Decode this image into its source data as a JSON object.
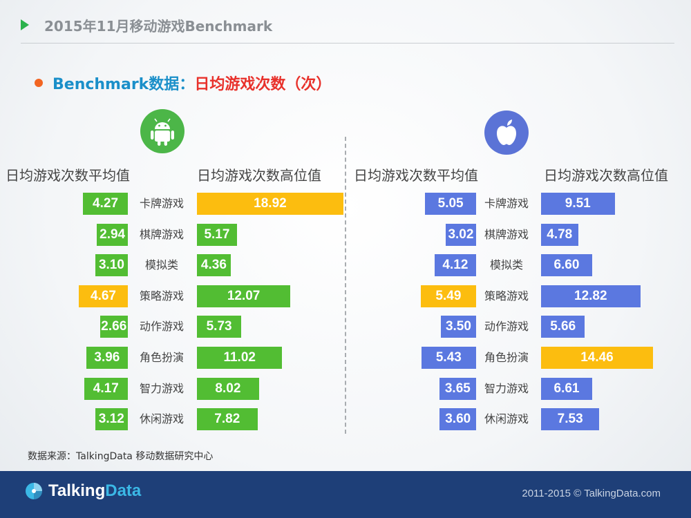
{
  "header": {
    "title": "2015年11月移动游戏Benchmark"
  },
  "subtitle": {
    "part1": "Benchmark数据：",
    "part2": "日均游戏次数（次）"
  },
  "colors": {
    "green": "#52bd33",
    "blue": "#5b78e0",
    "highlight": "#fcbd0f"
  },
  "icons": {
    "left": "android-icon",
    "right": "apple-icon"
  },
  "chart_data": [
    {
      "type": "bar",
      "platform": "android",
      "categories": [
        "卡牌游戏",
        "棋牌游戏",
        "模拟类",
        "策略游戏",
        "动作游戏",
        "角色扮演",
        "智力游戏",
        "休闲游戏"
      ],
      "series": [
        {
          "name": "日均游戏次数平均值",
          "values": [
            4.27,
            2.94,
            3.1,
            4.67,
            2.66,
            3.96,
            4.17,
            3.12
          ],
          "labels": [
            "4.27",
            "2.94",
            "3.10",
            "4.67",
            "2.66",
            "3.96",
            "4.17",
            "3.12"
          ],
          "highlight_index": 3
        },
        {
          "name": "日均游戏次数高位值",
          "values": [
            18.92,
            5.17,
            4.36,
            12.07,
            5.73,
            11.02,
            8.02,
            7.82
          ],
          "labels": [
            "18.92",
            "5.17",
            "4.36",
            "12.07",
            "5.73",
            "11.02",
            "8.02",
            "7.82"
          ],
          "highlight_index": 0
        }
      ]
    },
    {
      "type": "bar",
      "platform": "ios",
      "categories": [
        "卡牌游戏",
        "棋牌游戏",
        "模拟类",
        "策略游戏",
        "动作游戏",
        "角色扮演",
        "智力游戏",
        "休闲游戏"
      ],
      "series": [
        {
          "name": "日均游戏次数平均值",
          "values": [
            5.05,
            3.02,
            4.12,
            5.49,
            3.5,
            5.43,
            3.65,
            3.6
          ],
          "labels": [
            "5.05",
            "3.02",
            "4.12",
            "5.49",
            "3.50",
            "5.43",
            "3.65",
            "3.60"
          ],
          "highlight_index": 3
        },
        {
          "name": "日均游戏次数高位值",
          "values": [
            9.51,
            4.78,
            6.6,
            12.82,
            5.66,
            14.46,
            6.61,
            7.53
          ],
          "labels": [
            "9.51",
            "4.78",
            "6.60",
            "12.82",
            "5.66",
            "14.46",
            "6.61",
            "7.53"
          ],
          "highlight_index": 5
        }
      ]
    }
  ],
  "footer": {
    "source": "数据来源：TalkingData 移动数据研究中心",
    "logo_part1": "Talking",
    "logo_part2": "Data",
    "copyright": "2011-2015 © TalkingData.com"
  }
}
